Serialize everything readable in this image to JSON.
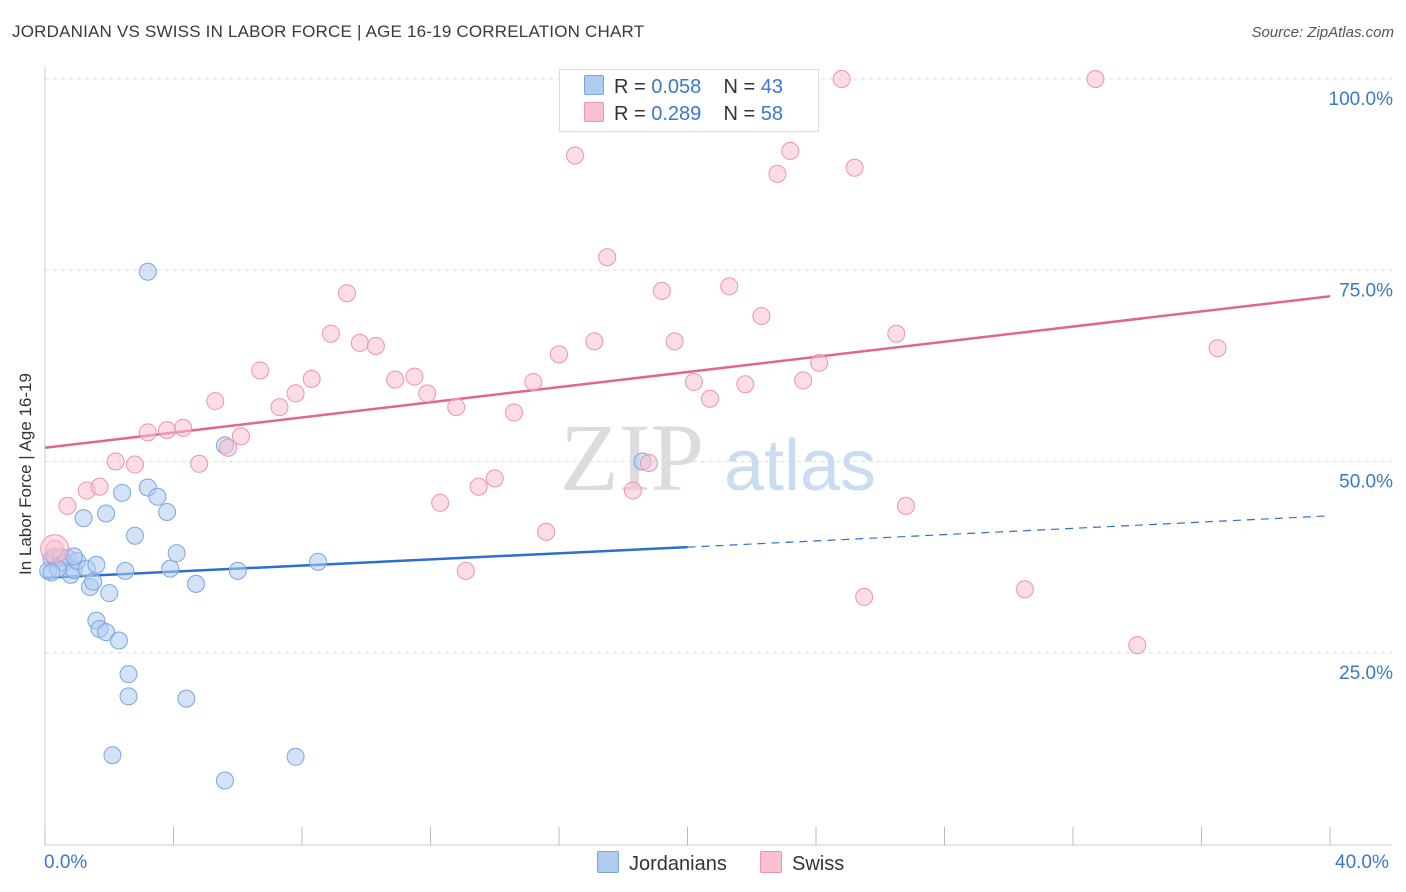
{
  "title": "JORDANIAN VS SWISS IN LABOR FORCE | AGE 16-19 CORRELATION CHART",
  "source": "Source: ZipAtlas.com",
  "watermark": {
    "zip": "ZIP",
    "atlas": "atlas"
  },
  "legend": {
    "rows": [
      {
        "r_label": "R = ",
        "r_value": "0.058",
        "n_label": "N = ",
        "n_value": "43",
        "color": "#aecbf0"
      },
      {
        "r_label": "R = ",
        "r_value": "0.289",
        "n_label": "N = ",
        "n_value": "58",
        "color": "#f9c0d0"
      }
    ]
  },
  "bottom_legend": [
    {
      "label": "Jordanians",
      "color": "#aecbf0"
    },
    {
      "label": "Swiss",
      "color": "#f9c0d0"
    }
  ],
  "chart_data": {
    "type": "scatter",
    "title": "JORDANIAN VS SWISS IN LABOR FORCE | AGE 16-19 CORRELATION CHART",
    "ylabel": "In Labor Force | Age 16-19",
    "xlabel": "",
    "xlim": [
      0,
      40
    ],
    "ylim": [
      0,
      102
    ],
    "x_tick_labels": [
      "0.0%",
      "40.0%"
    ],
    "y_ticks": [
      25,
      50,
      75,
      100
    ],
    "y_tick_labels": [
      "25.0%",
      "50.0%",
      "75.0%",
      "100.0%"
    ],
    "grid": true,
    "legend_position": "top-center",
    "series": [
      {
        "name": "Jordanians",
        "color": "#aecbf0",
        "stroke": "#7aa6dc",
        "line_color": "#2d6fcd",
        "trend": {
          "x0": 0,
          "y0": 34.8,
          "x1": 20,
          "y1": 38.8,
          "dash_x1": 40,
          "dash_y1": 42.9
        },
        "points": [
          [
            0.1,
            35.7
          ],
          [
            0.2,
            37.3
          ],
          [
            0.3,
            37.5
          ],
          [
            0.5,
            37.5
          ],
          [
            0.6,
            36.8
          ],
          [
            0.7,
            37.4
          ],
          [
            0.8,
            35.2
          ],
          [
            0.9,
            35.8
          ],
          [
            1.0,
            37.0
          ],
          [
            1.3,
            36.0
          ],
          [
            1.4,
            33.6
          ],
          [
            1.5,
            34.3
          ],
          [
            1.6,
            29.2
          ],
          [
            1.7,
            28.1
          ],
          [
            1.9,
            27.7
          ],
          [
            2.0,
            32.8
          ],
          [
            2.3,
            26.6
          ],
          [
            2.5,
            35.7
          ],
          [
            2.6,
            22.2
          ],
          [
            2.6,
            19.3
          ],
          [
            1.2,
            42.6
          ],
          [
            1.9,
            43.2
          ],
          [
            2.4,
            45.9
          ],
          [
            2.8,
            40.3
          ],
          [
            3.2,
            74.8
          ],
          [
            3.2,
            46.6
          ],
          [
            3.5,
            45.4
          ],
          [
            3.8,
            43.4
          ],
          [
            3.9,
            36.0
          ],
          [
            4.1,
            38.0
          ],
          [
            4.4,
            19.0
          ],
          [
            4.7,
            34.0
          ],
          [
            5.6,
            52.1
          ],
          [
            6.0,
            35.7
          ],
          [
            7.8,
            11.4
          ],
          [
            8.5,
            36.9
          ],
          [
            2.1,
            11.6
          ],
          [
            5.6,
            8.3
          ],
          [
            18.6,
            50.0
          ],
          [
            0.4,
            36.0
          ],
          [
            0.9,
            37.6
          ],
          [
            1.6,
            36.5
          ],
          [
            0.2,
            35.5
          ]
        ]
      },
      {
        "name": "Swiss",
        "color": "#f9c0d0",
        "stroke": "#ee93ae",
        "line_color": "#e0668f",
        "trend": {
          "x0": 0,
          "y0": 51.8,
          "x1": 40,
          "y1": 71.6
        },
        "points": [
          [
            0.3,
            38.6
          ],
          [
            0.7,
            44.2
          ],
          [
            1.3,
            46.2
          ],
          [
            1.7,
            46.7
          ],
          [
            2.2,
            50.0
          ],
          [
            2.8,
            49.6
          ],
          [
            3.2,
            53.8
          ],
          [
            3.8,
            54.1
          ],
          [
            4.3,
            54.4
          ],
          [
            4.8,
            49.7
          ],
          [
            5.3,
            57.9
          ],
          [
            5.7,
            51.8
          ],
          [
            6.1,
            53.3
          ],
          [
            6.7,
            61.9
          ],
          [
            7.3,
            57.1
          ],
          [
            7.8,
            58.9
          ],
          [
            8.3,
            60.8
          ],
          [
            8.9,
            66.7
          ],
          [
            9.4,
            72.0
          ],
          [
            9.8,
            65.5
          ],
          [
            10.3,
            65.1
          ],
          [
            10.9,
            60.7
          ],
          [
            11.5,
            61.1
          ],
          [
            11.9,
            58.9
          ],
          [
            12.3,
            44.6
          ],
          [
            12.8,
            57.1
          ],
          [
            13.1,
            35.7
          ],
          [
            13.5,
            46.7
          ],
          [
            14.0,
            47.8
          ],
          [
            14.6,
            56.4
          ],
          [
            15.2,
            60.4
          ],
          [
            15.6,
            40.8
          ],
          [
            16.0,
            64.0
          ],
          [
            16.5,
            90.0
          ],
          [
            17.1,
            65.7
          ],
          [
            17.5,
            76.7
          ],
          [
            18.3,
            46.2
          ],
          [
            18.8,
            49.8
          ],
          [
            19.2,
            72.3
          ],
          [
            19.6,
            65.7
          ],
          [
            20.2,
            60.4
          ],
          [
            20.7,
            58.2
          ],
          [
            21.3,
            72.9
          ],
          [
            21.8,
            60.1
          ],
          [
            22.3,
            69.0
          ],
          [
            22.8,
            87.6
          ],
          [
            23.2,
            90.6
          ],
          [
            23.6,
            60.6
          ],
          [
            24.1,
            62.9
          ],
          [
            24.8,
            100.0
          ],
          [
            25.2,
            88.4
          ],
          [
            25.5,
            32.3
          ],
          [
            26.5,
            66.7
          ],
          [
            26.8,
            44.2
          ],
          [
            30.5,
            33.3
          ],
          [
            32.7,
            100.0
          ],
          [
            34.0,
            26.0
          ],
          [
            36.5,
            64.8
          ]
        ]
      }
    ]
  }
}
